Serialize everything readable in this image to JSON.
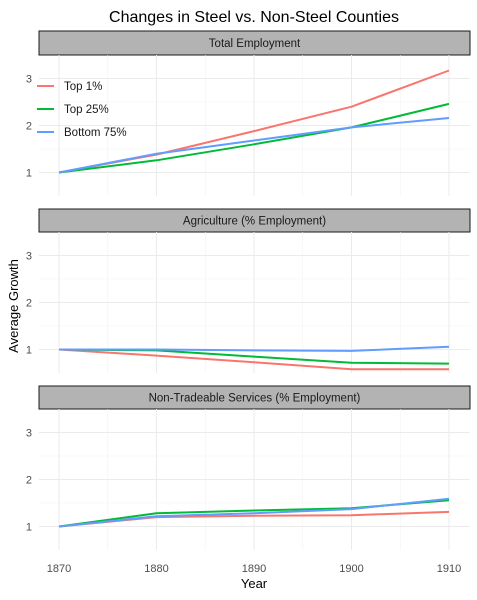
{
  "title": "Changes in Steel vs. Non-Steel Counties",
  "chart_data": {
    "type": "line",
    "title": "Changes in Steel vs. Non-Steel Counties",
    "xlabel": "Year",
    "ylabel": "Average Growth",
    "x": [
      1870,
      1880,
      1890,
      1900,
      1910
    ],
    "x_ticks": [
      "1870",
      "1880",
      "1890",
      "1900",
      "1910"
    ],
    "ylim": [
      0.5,
      3.5
    ],
    "y_ticks": [
      "1",
      "2",
      "3"
    ],
    "grid": true,
    "legend_position": "top-left inside first panel",
    "colors": {
      "top1": "#F8766D",
      "top25": "#00BA38",
      "bottom75": "#619CFF",
      "strip_fill": "#b3b3b3",
      "grid": "#ebebeb"
    },
    "panels": [
      {
        "label": "Total Employment",
        "series": [
          {
            "name": "Top 1%",
            "key": "top1",
            "values": [
              1.0,
              1.38,
              1.88,
              2.4,
              3.17
            ]
          },
          {
            "name": "Top 25%",
            "key": "top25",
            "values": [
              1.0,
              1.26,
              1.6,
              1.96,
              2.46
            ]
          },
          {
            "name": "Bottom 75%",
            "key": "bottom75",
            "values": [
              1.0,
              1.4,
              1.68,
              1.96,
              2.16
            ]
          }
        ]
      },
      {
        "label": "Agriculture (% Employment)",
        "series": [
          {
            "name": "Top 1%",
            "key": "top1",
            "values": [
              1.0,
              0.87,
              0.73,
              0.58,
              0.58
            ]
          },
          {
            "name": "Top 25%",
            "key": "top25",
            "values": [
              1.0,
              0.98,
              0.85,
              0.72,
              0.7
            ]
          },
          {
            "name": "Bottom 75%",
            "key": "bottom75",
            "values": [
              1.0,
              1.0,
              0.98,
              0.97,
              1.06
            ]
          }
        ]
      },
      {
        "label": "Non-Tradeable Services (% Employment)",
        "series": [
          {
            "name": "Top 1%",
            "key": "top1",
            "values": [
              1.0,
              1.2,
              1.23,
              1.24,
              1.31
            ]
          },
          {
            "name": "Top 25%",
            "key": "top25",
            "values": [
              1.0,
              1.28,
              1.34,
              1.39,
              1.56
            ]
          },
          {
            "name": "Bottom 75%",
            "key": "bottom75",
            "values": [
              1.0,
              1.22,
              1.28,
              1.37,
              1.59
            ]
          }
        ]
      }
    ],
    "legend": [
      {
        "name": "Top 1%",
        "key": "top1"
      },
      {
        "name": "Top 25%",
        "key": "top25"
      },
      {
        "name": "Bottom 75%",
        "key": "bottom75"
      }
    ]
  }
}
